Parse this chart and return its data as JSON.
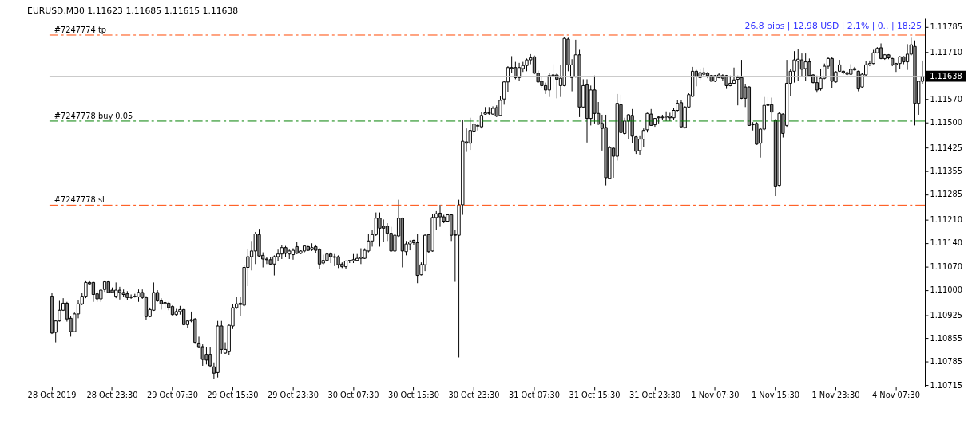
{
  "chart_data": {
    "type": "candlestick",
    "title": "EURUSD,M30  1.11623 1.11685 1.11615 1.11638",
    "annotations": [
      "26.8 pips | 12.98 USD | 2.1% | 0.. | 18:25"
    ],
    "categories": [
      "28 Oct 2019",
      null,
      null,
      null,
      null,
      null,
      null,
      null,
      null,
      null,
      null,
      null,
      null,
      null,
      null,
      null,
      "28 Oct 23:30",
      null,
      null,
      null,
      null,
      null,
      null,
      null,
      null,
      null,
      null,
      null,
      null,
      null,
      null,
      null,
      "29 Oct 07:30",
      null,
      null,
      null,
      null,
      null,
      null,
      null,
      null,
      null,
      null,
      null,
      null,
      null,
      null,
      null,
      "29 Oct 15:30",
      null,
      null,
      null,
      null,
      null,
      null,
      null,
      null,
      null,
      null,
      null,
      null,
      null,
      null,
      null,
      "29 Oct 23:30",
      null,
      null,
      null,
      null,
      null,
      null,
      null,
      null,
      null,
      null,
      null,
      null,
      null,
      null,
      null,
      "30 Oct 07:30",
      null,
      null,
      null,
      null,
      null,
      null,
      null,
      null,
      null,
      null,
      null,
      null,
      null,
      null,
      null,
      "30 Oct 15:30",
      null,
      null,
      null,
      null,
      null,
      null,
      null,
      null,
      null,
      null,
      null,
      null,
      null,
      null,
      null,
      "30 Oct 23:30",
      null,
      null,
      null,
      null,
      null,
      null,
      null,
      null,
      null,
      null,
      null,
      null,
      null,
      null,
      null,
      "31 Oct 07:30",
      null,
      null,
      null,
      null,
      null,
      null,
      null,
      null,
      null,
      null,
      null,
      null,
      null,
      null,
      null,
      "31 Oct 15:30",
      null,
      null,
      null,
      null,
      null,
      null,
      null,
      null,
      null,
      null,
      null,
      null,
      null,
      null,
      null,
      "31 Oct 23:30",
      null,
      null,
      null,
      null,
      null,
      null,
      null,
      null,
      null,
      null,
      null,
      null,
      null,
      null,
      null,
      "1 Nov 07:30",
      null,
      null,
      null,
      null,
      null,
      null,
      null,
      null,
      null,
      null,
      null,
      null,
      null,
      null,
      null,
      "1 Nov 15:30",
      null,
      null,
      null,
      null,
      null,
      null,
      null,
      null,
      null,
      null,
      null,
      null,
      null,
      null,
      null,
      "1 Nov 23:30",
      null,
      null,
      null,
      null,
      null,
      null,
      null,
      null,
      null,
      null,
      null,
      null,
      null,
      null,
      null,
      "4 Nov 07:30",
      null,
      null,
      null,
      null,
      null,
      null,
      null
    ],
    "ohlc": [
      [
        1.10981,
        1.10992,
        1.10868,
        1.10871
      ],
      [
        1.10873,
        1.10911,
        1.10843,
        1.10907
      ],
      [
        1.10907,
        1.10967,
        1.10905,
        1.10939
      ],
      [
        1.10939,
        1.10975,
        1.10937,
        1.1096
      ],
      [
        1.1096,
        1.10964,
        1.10905,
        1.10913
      ],
      [
        1.10915,
        1.10922,
        1.1086,
        1.10875
      ],
      [
        1.10875,
        1.10932,
        1.10873,
        1.10928
      ],
      [
        1.10928,
        1.10969,
        1.10915,
        1.10958
      ],
      [
        1.10958,
        1.1099,
        1.10954,
        1.10981
      ],
      [
        1.10981,
        1.11028,
        1.10975,
        1.11022
      ],
      [
        1.11022,
        1.11028,
        1.11016,
        1.11018
      ],
      [
        1.11022,
        1.11024,
        1.10964,
        1.10986
      ],
      [
        1.10988,
        1.10996,
        1.10964,
        1.10973
      ],
      [
        1.10973,
        1.11003,
        1.10964,
        1.10999
      ],
      [
        1.11001,
        1.11028,
        1.10994,
        1.11024
      ],
      [
        1.11024,
        1.11028,
        1.1099,
        1.10992
      ],
      [
        1.10999,
        1.11007,
        1.1099,
        1.10992
      ],
      [
        1.10981,
        1.11022,
        1.10975,
        1.10999
      ],
      [
        1.10999,
        1.11009,
        1.10971,
        1.10992
      ],
      [
        1.10992,
        1.11001,
        1.10979,
        1.10986
      ],
      [
        1.10988,
        1.10996,
        1.10969,
        1.10977
      ],
      [
        1.10979,
        1.10986,
        1.10973,
        1.10977
      ],
      [
        1.10979,
        1.10988,
        1.10977,
        1.10981
      ],
      [
        1.10979,
        1.11001,
        1.10964,
        1.10992
      ],
      [
        1.10992,
        1.11001,
        1.10973,
        1.10977
      ],
      [
        1.10977,
        1.10981,
        1.10909,
        1.1092
      ],
      [
        1.1092,
        1.10947,
        1.10918,
        1.10941
      ],
      [
        1.10939,
        1.11022,
        1.10937,
        1.10992
      ],
      [
        1.10992,
        1.10999,
        1.10964,
        1.10967
      ],
      [
        1.10967,
        1.10975,
        1.10941,
        1.10958
      ],
      [
        1.10962,
        1.10969,
        1.10943,
        1.10958
      ],
      [
        1.1096,
        1.10964,
        1.10939,
        1.10947
      ],
      [
        1.1095,
        1.10954,
        1.10922,
        1.10926
      ],
      [
        1.10926,
        1.10943,
        1.10922,
        1.10935
      ],
      [
        1.10935,
        1.10952,
        1.10926,
        1.10941
      ],
      [
        1.10941,
        1.10943,
        1.10894,
        1.10896
      ],
      [
        1.10896,
        1.10911,
        1.10886,
        1.10907
      ],
      [
        1.10907,
        1.10935,
        1.10903,
        1.10911
      ],
      [
        1.10913,
        1.10915,
        1.10841,
        1.10843
      ],
      [
        1.10841,
        1.1086,
        1.10826,
        1.1083
      ],
      [
        1.1083,
        1.10837,
        1.10773,
        1.10792
      ],
      [
        1.10807,
        1.1083,
        1.10777,
        1.1079
      ],
      [
        1.10807,
        1.1083,
        1.10768,
        1.10773
      ],
      [
        1.1077,
        1.10783,
        1.10734,
        1.10751
      ],
      [
        1.10753,
        1.10907,
        1.10738,
        1.10892
      ],
      [
        1.10892,
        1.10907,
        1.10809,
        1.10822
      ],
      [
        1.10811,
        1.10843,
        1.10809,
        1.10822
      ],
      [
        1.10815,
        1.10896,
        1.10805,
        1.10894
      ],
      [
        1.10892,
        1.10958,
        1.10883,
        1.10947
      ],
      [
        1.10947,
        1.10979,
        1.10943,
        1.10958
      ],
      [
        1.10956,
        1.10979,
        1.10922,
        1.1096
      ],
      [
        1.10954,
        1.11075,
        1.1095,
        1.11067
      ],
      [
        1.11067,
        1.11122,
        1.11011,
        1.11099
      ],
      [
        1.11099,
        1.11146,
        1.11058,
        1.11116
      ],
      [
        1.11116,
        1.11173,
        1.11077,
        1.11167
      ],
      [
        1.11165,
        1.11182,
        1.11097,
        1.11101
      ],
      [
        1.11103,
        1.11112,
        1.11067,
        1.11092
      ],
      [
        1.11092,
        1.11099,
        1.11077,
        1.1109
      ],
      [
        1.1109,
        1.11097,
        1.11075,
        1.11077
      ],
      [
        1.11077,
        1.11103,
        1.11043,
        1.11099
      ],
      [
        1.11099,
        1.1112,
        1.11086,
        1.11107
      ],
      [
        1.11107,
        1.11133,
        1.11092,
        1.11126
      ],
      [
        1.11126,
        1.11131,
        1.11097,
        1.11109
      ],
      [
        1.11107,
        1.1112,
        1.11092,
        1.11116
      ],
      [
        1.11105,
        1.11124,
        1.1109,
        1.11118
      ],
      [
        1.11129,
        1.11143,
        1.11107,
        1.11109
      ],
      [
        1.11109,
        1.11118,
        1.11107,
        1.11116
      ],
      [
        1.11116,
        1.11131,
        1.11112,
        1.11131
      ],
      [
        1.11129,
        1.11131,
        1.11116,
        1.11118
      ],
      [
        1.1112,
        1.11139,
        1.11116,
        1.11126
      ],
      [
        1.11129,
        1.11135,
        1.11109,
        1.11118
      ],
      [
        1.1112,
        1.11124,
        1.11062,
        1.11077
      ],
      [
        1.1108,
        1.11105,
        1.11073,
        1.11088
      ],
      [
        1.11088,
        1.11112,
        1.11084,
        1.11107
      ],
      [
        1.11107,
        1.11112,
        1.1108,
        1.11099
      ],
      [
        1.11099,
        1.11107,
        1.11071,
        1.11097
      ],
      [
        1.11099,
        1.11103,
        1.11065,
        1.11075
      ],
      [
        1.11077,
        1.11082,
        1.11065,
        1.11069
      ],
      [
        1.11069,
        1.11088,
        1.11062,
        1.11086
      ],
      [
        1.11086,
        1.11088,
        1.1108,
        1.11088
      ],
      [
        1.11086,
        1.11107,
        1.1108,
        1.1109
      ],
      [
        1.11088,
        1.11107,
        1.11086,
        1.11094
      ],
      [
        1.11094,
        1.11124,
        1.11077,
        1.11097
      ],
      [
        1.11094,
        1.11124,
        1.11092,
        1.11118
      ],
      [
        1.11116,
        1.11167,
        1.11112,
        1.11146
      ],
      [
        1.11146,
        1.1118,
        1.11129,
        1.11165
      ],
      [
        1.11165,
        1.11231,
        1.11161,
        1.11214
      ],
      [
        1.11214,
        1.11231,
        1.11129,
        1.11184
      ],
      [
        1.1119,
        1.1121,
        1.11143,
        1.11184
      ],
      [
        1.1119,
        1.11199,
        1.11146,
        1.11169
      ],
      [
        1.11169,
        1.11188,
        1.11114,
        1.11116
      ],
      [
        1.11116,
        1.11167,
        1.11114,
        1.11163
      ],
      [
        1.11161,
        1.11269,
        1.11158,
        1.11214
      ],
      [
        1.11214,
        1.11216,
        1.11067,
        1.11116
      ],
      [
        1.11114,
        1.11146,
        1.11103,
        1.11137
      ],
      [
        1.11137,
        1.11148,
        1.11118,
        1.11143
      ],
      [
        1.11148,
        1.1115,
        1.11135,
        1.11141
      ],
      [
        1.11141,
        1.11167,
        1.1102,
        1.11043
      ],
      [
        1.11045,
        1.11082,
        1.11043,
        1.11075
      ],
      [
        1.11075,
        1.11167,
        1.11056,
        1.11163
      ],
      [
        1.11165,
        1.11167,
        1.11109,
        1.11114
      ],
      [
        1.11116,
        1.11227,
        1.11114,
        1.11216
      ],
      [
        1.11216,
        1.11235,
        1.11178,
        1.11227
      ],
      [
        1.11229,
        1.11254,
        1.11188,
        1.11218
      ],
      [
        1.11218,
        1.11224,
        1.11199,
        1.11205
      ],
      [
        1.11205,
        1.11227,
        1.11203,
        1.11224
      ],
      [
        1.11224,
        1.11227,
        1.11146,
        1.11163
      ],
      [
        1.11165,
        1.11178,
        1.11024,
        1.11163
      ],
      [
        1.11163,
        1.11269,
        1.10798,
        1.11254
      ],
      [
        1.11254,
        1.11508,
        1.11224,
        1.11444
      ],
      [
        1.11442,
        1.11482,
        1.11412,
        1.11438
      ],
      [
        1.11438,
        1.11514,
        1.11418,
        1.11476
      ],
      [
        1.11474,
        1.11501,
        1.11459,
        1.11495
      ],
      [
        1.11489,
        1.11495,
        1.11476,
        1.11491
      ],
      [
        1.11487,
        1.11531,
        1.11482,
        1.11521
      ],
      [
        1.11525,
        1.11546,
        1.11523,
        1.11529
      ],
      [
        1.11527,
        1.11546,
        1.11523,
        1.11529
      ],
      [
        1.11525,
        1.11548,
        1.11523,
        1.11542
      ],
      [
        1.11544,
        1.11551,
        1.11516,
        1.11519
      ],
      [
        1.11521,
        1.11578,
        1.11519,
        1.11566
      ],
      [
        1.1157,
        1.11623,
        1.11553,
        1.11621
      ],
      [
        1.11621,
        1.11668,
        1.11591,
        1.11664
      ],
      [
        1.11664,
        1.11698,
        1.11647,
        1.11661
      ],
      [
        1.11664,
        1.11681,
        1.11629,
        1.11634
      ],
      [
        1.11634,
        1.11678,
        1.11625,
        1.11664
      ],
      [
        1.11661,
        1.11681,
        1.11651,
        1.1167
      ],
      [
        1.1167,
        1.11691,
        1.11653,
        1.11687
      ],
      [
        1.11687,
        1.11704,
        1.11674,
        1.11693
      ],
      [
        1.11696,
        1.117,
        1.11644,
        1.11647
      ],
      [
        1.11647,
        1.11655,
        1.11619,
        1.11621
      ],
      [
        1.11623,
        1.11638,
        1.11602,
        1.1161
      ],
      [
        1.1161,
        1.11619,
        1.11585,
        1.11597
      ],
      [
        1.11597,
        1.11647,
        1.11576,
        1.1164
      ],
      [
        1.1164,
        1.11674,
        1.11597,
        1.11642
      ],
      [
        1.11642,
        1.11647,
        1.11572,
        1.11629
      ],
      [
        1.1161,
        1.11672,
        1.11576,
        1.11632
      ],
      [
        1.1161,
        1.11755,
        1.11608,
        1.11751
      ],
      [
        1.11749,
        1.11753,
        1.11653,
        1.11672
      ],
      [
        1.11634,
        1.11689,
        1.11593,
        1.11672
      ],
      [
        1.11636,
        1.11747,
        1.11634,
        1.11702
      ],
      [
        1.11702,
        1.11717,
        1.11516,
        1.11546
      ],
      [
        1.11546,
        1.11629,
        1.11544,
        1.1161
      ],
      [
        1.11612,
        1.11629,
        1.1144,
        1.11512
      ],
      [
        1.11512,
        1.1161,
        1.11491,
        1.11597
      ],
      [
        1.11597,
        1.1164,
        1.11497,
        1.11527
      ],
      [
        1.11527,
        1.11561,
        1.11493,
        1.11495
      ],
      [
        1.11497,
        1.11523,
        1.11416,
        1.11482
      ],
      [
        1.11485,
        1.11523,
        1.11312,
        1.11335
      ],
      [
        1.11333,
        1.11429,
        1.11331,
        1.11425
      ],
      [
        1.11423,
        1.11425,
        1.11335,
        1.11399
      ],
      [
        1.11399,
        1.11585,
        1.11386,
        1.11557
      ],
      [
        1.11553,
        1.11583,
        1.11461,
        1.1147
      ],
      [
        1.11467,
        1.11514,
        1.11461,
        1.11504
      ],
      [
        1.11504,
        1.11525,
        1.1145,
        1.11523
      ],
      [
        1.11521,
        1.1154,
        1.11438,
        1.11459
      ],
      [
        1.11457,
        1.11459,
        1.11406,
        1.11414
      ],
      [
        1.11416,
        1.11459,
        1.11404,
        1.1145
      ],
      [
        1.1145,
        1.11482,
        1.11427,
        1.11476
      ],
      [
        1.11478,
        1.11529,
        1.1147,
        1.11527
      ],
      [
        1.11525,
        1.1154,
        1.11491,
        1.11491
      ],
      [
        1.11493,
        1.11512,
        1.11487,
        1.11512
      ],
      [
        1.11514,
        1.11519,
        1.11497,
        1.11516
      ],
      [
        1.11514,
        1.11523,
        1.11508,
        1.11516
      ],
      [
        1.11516,
        1.11533,
        1.11504,
        1.11519
      ],
      [
        1.11519,
        1.11529,
        1.11504,
        1.11514
      ],
      [
        1.11514,
        1.11544,
        1.11508,
        1.11536
      ],
      [
        1.11536,
        1.11566,
        1.11533,
        1.11557
      ],
      [
        1.11559,
        1.11566,
        1.11485,
        1.11487
      ],
      [
        1.11485,
        1.11548,
        1.11482,
        1.11546
      ],
      [
        1.11546,
        1.11587,
        1.11544,
        1.11583
      ],
      [
        1.11578,
        1.11666,
        1.11576,
        1.11653
      ],
      [
        1.11653,
        1.11657,
        1.11608,
        1.11636
      ],
      [
        1.11634,
        1.11659,
        1.11627,
        1.11649
      ],
      [
        1.11644,
        1.11664,
        1.11638,
        1.11649
      ],
      [
        1.11647,
        1.11651,
        1.11632,
        1.1164
      ],
      [
        1.1164,
        1.11642,
        1.11623,
        1.11623
      ],
      [
        1.11623,
        1.11642,
        1.11621,
        1.1164
      ],
      [
        1.11634,
        1.11647,
        1.11632,
        1.11642
      ],
      [
        1.1164,
        1.11644,
        1.11625,
        1.11632
      ],
      [
        1.1164,
        1.11642,
        1.116,
        1.1161
      ],
      [
        1.1161,
        1.1164,
        1.11608,
        1.11617
      ],
      [
        1.11617,
        1.11664,
        1.11615,
        1.11627
      ],
      [
        1.11629,
        1.1164,
        1.11551,
        1.11634
      ],
      [
        1.11634,
        1.11687,
        1.1157,
        1.11572
      ],
      [
        1.11606,
        1.11615,
        1.11546,
        1.11572
      ],
      [
        1.11606,
        1.11608,
        1.11491,
        1.11491
      ],
      [
        1.11495,
        1.11501,
        1.11476,
        1.11493
      ],
      [
        1.11497,
        1.11501,
        1.11433,
        1.11435
      ],
      [
        1.11438,
        1.11485,
        1.11395,
        1.1148
      ],
      [
        1.1148,
        1.11576,
        1.11476,
        1.11551
      ],
      [
        1.11551,
        1.11576,
        1.11533,
        1.11553
      ],
      [
        1.11553,
        1.11574,
        1.11504,
        1.11531
      ],
      [
        1.11506,
        1.1151,
        1.1128,
        1.1131
      ],
      [
        1.11312,
        1.11531,
        1.1131,
        1.11527
      ],
      [
        1.11525,
        1.11527,
        1.11455,
        1.11467
      ],
      [
        1.11491,
        1.11687,
        1.11487,
        1.11617
      ],
      [
        1.11617,
        1.11661,
        1.11578,
        1.11653
      ],
      [
        1.11653,
        1.11713,
        1.11619,
        1.11687
      ],
      [
        1.11683,
        1.11719,
        1.11623,
        1.11689
      ],
      [
        1.11687,
        1.11706,
        1.11636,
        1.11659
      ],
      [
        1.11661,
        1.11706,
        1.11623,
        1.11681
      ],
      [
        1.11681,
        1.11691,
        1.1164,
        1.1164
      ],
      [
        1.11642,
        1.11644,
        1.11617,
        1.11619
      ],
      [
        1.11619,
        1.1164,
        1.11589,
        1.11597
      ],
      [
        1.116,
        1.11661,
        1.11595,
        1.11632
      ],
      [
        1.11632,
        1.11676,
        1.11629,
        1.11668
      ],
      [
        1.11668,
        1.11696,
        1.11661,
        1.11691
      ],
      [
        1.11691,
        1.11696,
        1.11602,
        1.11623
      ],
      [
        1.11621,
        1.11653,
        1.11619,
        1.11651
      ],
      [
        1.11653,
        1.11687,
        1.11651,
        1.11672
      ],
      [
        1.11653,
        1.11655,
        1.11644,
        1.11649
      ],
      [
        1.11649,
        1.11653,
        1.1164,
        1.11644
      ],
      [
        1.11644,
        1.11674,
        1.11642,
        1.11659
      ],
      [
        1.11661,
        1.11666,
        1.11655,
        1.11657
      ],
      [
        1.11653,
        1.11655,
        1.11593,
        1.116
      ],
      [
        1.11606,
        1.11647,
        1.11604,
        1.11644
      ],
      [
        1.11642,
        1.11683,
        1.1164,
        1.11672
      ],
      [
        1.11672,
        1.11685,
        1.11668,
        1.11676
      ],
      [
        1.11676,
        1.11717,
        1.11674,
        1.11708
      ],
      [
        1.11708,
        1.11725,
        1.11706,
        1.11721
      ],
      [
        1.11723,
        1.11736,
        1.11689,
        1.11691
      ],
      [
        1.11691,
        1.11704,
        1.11687,
        1.11702
      ],
      [
        1.11702,
        1.11704,
        1.11689,
        1.11693
      ],
      [
        1.11691,
        1.11693,
        1.11668,
        1.11672
      ],
      [
        1.11676,
        1.11678,
        1.11651,
        1.11672
      ],
      [
        1.11676,
        1.11698,
        1.11659,
        1.11696
      ],
      [
        1.11696,
        1.11698,
        1.11674,
        1.11681
      ],
      [
        1.11681,
        1.11734,
        1.11657,
        1.11704
      ],
      [
        1.11704,
        1.11753,
        1.117,
        1.11732
      ],
      [
        1.11727,
        1.11745,
        1.11491,
        1.11557
      ],
      [
        1.11557,
        1.11625,
        1.11523,
        1.11623
      ],
      [
        1.11623,
        1.11685,
        1.11615,
        1.11638
      ]
    ],
    "ylim": [
      1.10711,
      1.11811
    ],
    "yticks": [
      1.10715,
      1.10785,
      1.10855,
      1.10925,
      {
        "value": 1.11,
        "label": "1.11000"
      },
      {
        "value": 1.1107,
        "label": "1.11070"
      },
      {
        "value": 1.1114,
        "label": "1.11140"
      },
      {
        "value": 1.1121,
        "label": "1.11210"
      },
      1.11285,
      1.11355,
      1.11425,
      {
        "value": 1.115,
        "label": "1.11500"
      },
      {
        "value": 1.1157,
        "label": "1.11570"
      },
      {
        "value": 1.1171,
        "label": "1.11710"
      },
      1.11785
    ],
    "ref_lines": [
      {
        "axis": "y",
        "value": 1.11761,
        "label": "#7247774 tp",
        "color": "#ff4500",
        "line_style": "dashed"
      },
      {
        "axis": "y",
        "value": 1.11638,
        "label": "1.11638",
        "color": "#c0c0c0",
        "line_style": "solid"
      },
      {
        "axis": "y",
        "value": 1.11504,
        "label": "#7247778 buy 0.05",
        "color": "#008000",
        "line_style": "dashed"
      },
      {
        "axis": "y",
        "value": 1.11253,
        "label": "#7247778 sl",
        "color": "#ff4500",
        "line_style": "dashed"
      }
    ]
  }
}
